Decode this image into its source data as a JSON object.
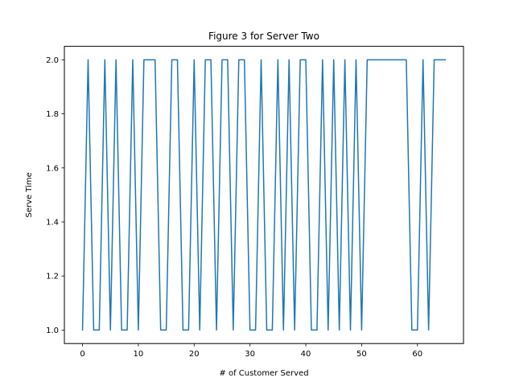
{
  "chart_data": {
    "type": "line",
    "title": "Figure 3 for Server Two",
    "xlabel": "# of Customer Served",
    "ylabel": "Serve Time",
    "xlim": [
      -3.25,
      68.25
    ],
    "ylim": [
      0.95,
      2.05
    ],
    "xticks": [
      0,
      10,
      20,
      30,
      40,
      50,
      60
    ],
    "xtick_labels": [
      "0",
      "10",
      "20",
      "30",
      "40",
      "50",
      "60"
    ],
    "yticks": [
      1.0,
      1.2,
      1.4,
      1.6,
      1.8,
      2.0
    ],
    "ytick_labels": [
      "1.0",
      "1.2",
      "1.4",
      "1.6",
      "1.8",
      "2.0"
    ],
    "grid": false,
    "series": [
      {
        "color": "#1f77b4",
        "x": [
          0,
          1,
          2,
          3,
          4,
          5,
          6,
          7,
          8,
          9,
          10,
          11,
          12,
          13,
          14,
          15,
          16,
          17,
          18,
          19,
          20,
          21,
          22,
          23,
          24,
          25,
          26,
          27,
          28,
          29,
          30,
          31,
          32,
          33,
          34,
          35,
          36,
          37,
          38,
          39,
          40,
          41,
          42,
          43,
          44,
          45,
          46,
          47,
          48,
          49,
          50,
          51,
          52,
          53,
          54,
          55,
          56,
          57,
          58,
          59,
          60,
          61,
          62,
          63,
          64,
          65
        ],
        "y": [
          1,
          2,
          1,
          1,
          2,
          1,
          2,
          1,
          1,
          2,
          1,
          2,
          2,
          2,
          1,
          1,
          2,
          2,
          1,
          1,
          2,
          1,
          2,
          2,
          1,
          2,
          2,
          1,
          2,
          2,
          1,
          1,
          2,
          1,
          1,
          2,
          1,
          2,
          1,
          2,
          2,
          1,
          1,
          2,
          1,
          2,
          1,
          2,
          1,
          2,
          1,
          2,
          2,
          2,
          2,
          2,
          2,
          2,
          2,
          1,
          1,
          2,
          1,
          2,
          2,
          2
        ]
      }
    ]
  }
}
